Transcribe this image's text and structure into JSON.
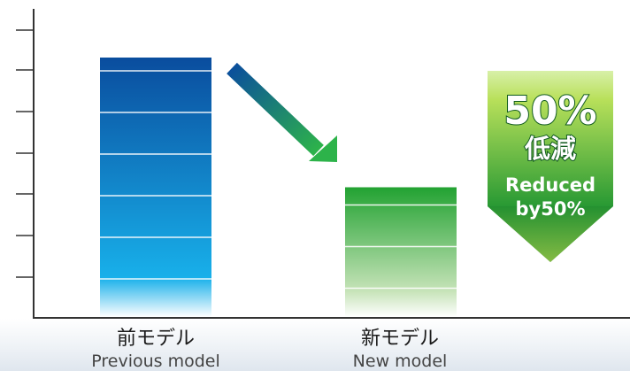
{
  "chart_data": {
    "type": "bar",
    "categories": [
      "前モデル",
      "新モデル"
    ],
    "category_subtitles": [
      "Previous model",
      "New model"
    ],
    "values": [
      100,
      50
    ],
    "ylim": [
      0,
      100
    ],
    "grid": false,
    "colors": {
      "previous_top": "#0a4d9e",
      "previous_bottom": "#18b0ea",
      "new_top": "#22a232",
      "new_bottom": "#c6e3b8",
      "axis": "#333333",
      "badge_top": "#b8e05a",
      "badge_bottom": "#0f7a2a",
      "arrow_start": "#0b4f9c",
      "arrow_end": "#2db34a"
    },
    "annotation": {
      "percent": "50%",
      "jp": "低減",
      "en_line1": "Reduced",
      "en_line2": "by50%"
    }
  }
}
